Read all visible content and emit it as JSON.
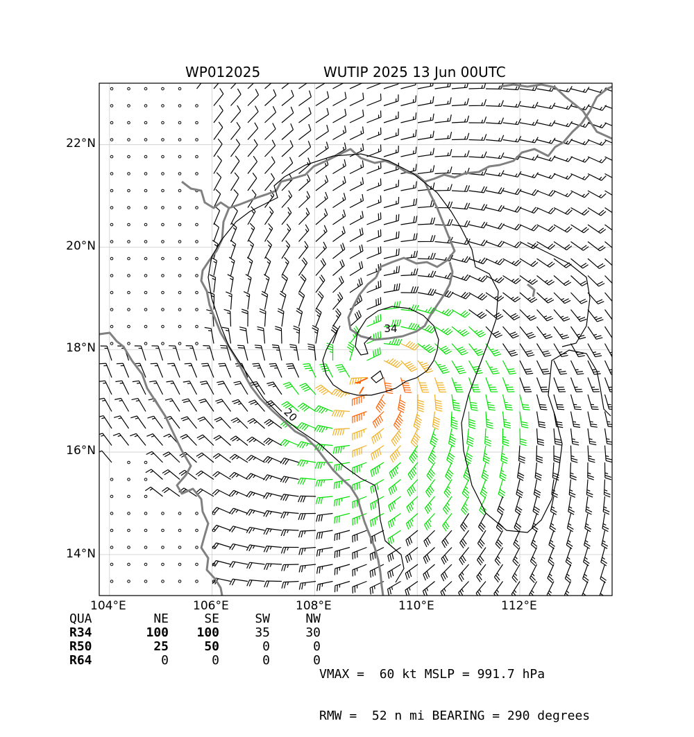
{
  "title": {
    "storm_id": "WP012025",
    "storm_info": "WUTIP 2025 13 Jun 00UTC"
  },
  "axes": {
    "lat_labels": [
      "22°N",
      "20°N",
      "18°N",
      "16°N",
      "14°N"
    ],
    "lon_labels": [
      "104°E",
      "106°E",
      "108°E",
      "110°E",
      "112°E"
    ]
  },
  "contours": {
    "label_34": "34",
    "label_20": "20"
  },
  "colors": {
    "calm": "#000000",
    "light": "#000000",
    "gale": "#00e000",
    "storm": "#f0b020",
    "hurricane": "#ff6000",
    "coast": "#808080",
    "grid": "#cccccc"
  },
  "wind_radii_table": {
    "header": [
      "QUA",
      "NE",
      "SE",
      "SW",
      "NW"
    ],
    "rows": [
      {
        "label": "R34",
        "values": [
          "100",
          "100",
          "35",
          "30"
        ]
      },
      {
        "label": "R50",
        "values": [
          "25",
          "50",
          "0",
          "0"
        ]
      },
      {
        "label": "R64",
        "values": [
          "0",
          "0",
          "0",
          "0"
        ]
      }
    ]
  },
  "stats": {
    "line1": "VMAX =  60 kt MSLP = 991.7 hPa",
    "line2": "RMW =  52 n mi BEARING = 290 degrees"
  }
}
